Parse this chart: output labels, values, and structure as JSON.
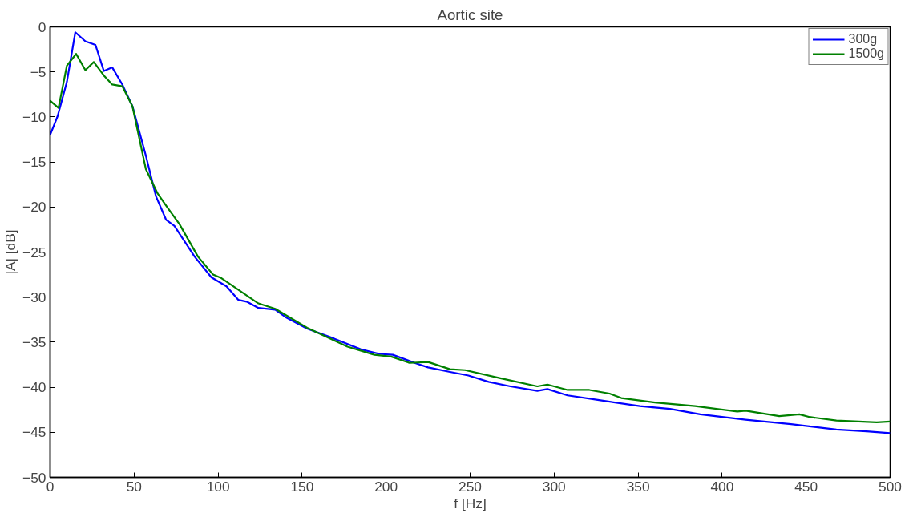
{
  "chart_data": {
    "type": "line",
    "title": "Aortic site",
    "xlabel": "f [Hz]",
    "ylabel": "|A| [dB]",
    "xlim": [
      0,
      500
    ],
    "ylim": [
      -50,
      0
    ],
    "xticks": [
      0,
      50,
      100,
      150,
      200,
      250,
      300,
      350,
      400,
      450,
      500
    ],
    "yticks": [
      -50,
      -45,
      -40,
      -35,
      -30,
      -25,
      -20,
      -15,
      -10,
      -5,
      0
    ],
    "grid": false,
    "legend": "top right",
    "marker": "none",
    "line_style": "solid",
    "series": [
      {
        "name": "300g",
        "color": "#0000ff",
        "x": [
          0,
          4.5,
          10,
          15,
          21,
          27,
          32,
          37,
          43,
          49,
          57,
          63,
          69,
          74,
          86,
          96,
          105,
          112,
          117,
          124,
          134,
          140,
          153,
          169,
          185,
          196,
          204,
          217,
          225,
          238,
          249,
          261,
          274,
          290,
          296,
          308,
          326,
          351,
          369,
          387,
          414,
          441,
          468,
          486,
          500
        ],
        "values": [
          -12,
          -9.9,
          -6.1,
          -0.6,
          -1.6,
          -2.0,
          -4.9,
          -4.5,
          -6.4,
          -8.8,
          -14.3,
          -18.8,
          -21.4,
          -22.1,
          -25.5,
          -27.8,
          -28.8,
          -30.3,
          -30.5,
          -31.2,
          -31.4,
          -32.2,
          -33.5,
          -34.6,
          -35.8,
          -36.3,
          -36.4,
          -37.3,
          -37.8,
          -38.3,
          -38.7,
          -39.4,
          -39.9,
          -40.4,
          -40.2,
          -40.9,
          -41.4,
          -42.1,
          -42.4,
          -43.0,
          -43.6,
          -44.1,
          -44.7,
          -44.9,
          -45.1
        ]
      },
      {
        "name": "1500g",
        "color": "#008000",
        "x": [
          0,
          5,
          10,
          15.5,
          21,
          26,
          32,
          37,
          43,
          49,
          57,
          64,
          70,
          77,
          88,
          97,
          102,
          109,
          113,
          124,
          134,
          153,
          177,
          193,
          203,
          214,
          225,
          238,
          247,
          268,
          290,
          296,
          308,
          321,
          333,
          340,
          360,
          384,
          409,
          414,
          434,
          446,
          452,
          468,
          492,
          500
        ],
        "values": [
          -8.2,
          -9.0,
          -4.3,
          -3.0,
          -4.8,
          -3.9,
          -5.4,
          -6.4,
          -6.6,
          -8.8,
          -15.8,
          -18.5,
          -20.1,
          -21.9,
          -25.5,
          -27.5,
          -27.9,
          -28.8,
          -29.3,
          -30.7,
          -31.3,
          -33.4,
          -35.5,
          -36.4,
          -36.6,
          -37.3,
          -37.2,
          -38.0,
          -38.1,
          -39.0,
          -39.9,
          -39.7,
          -40.3,
          -40.3,
          -40.7,
          -41.2,
          -41.7,
          -42.1,
          -42.7,
          -42.6,
          -43.2,
          -43.0,
          -43.3,
          -43.7,
          -43.9,
          -43.8
        ]
      }
    ]
  }
}
